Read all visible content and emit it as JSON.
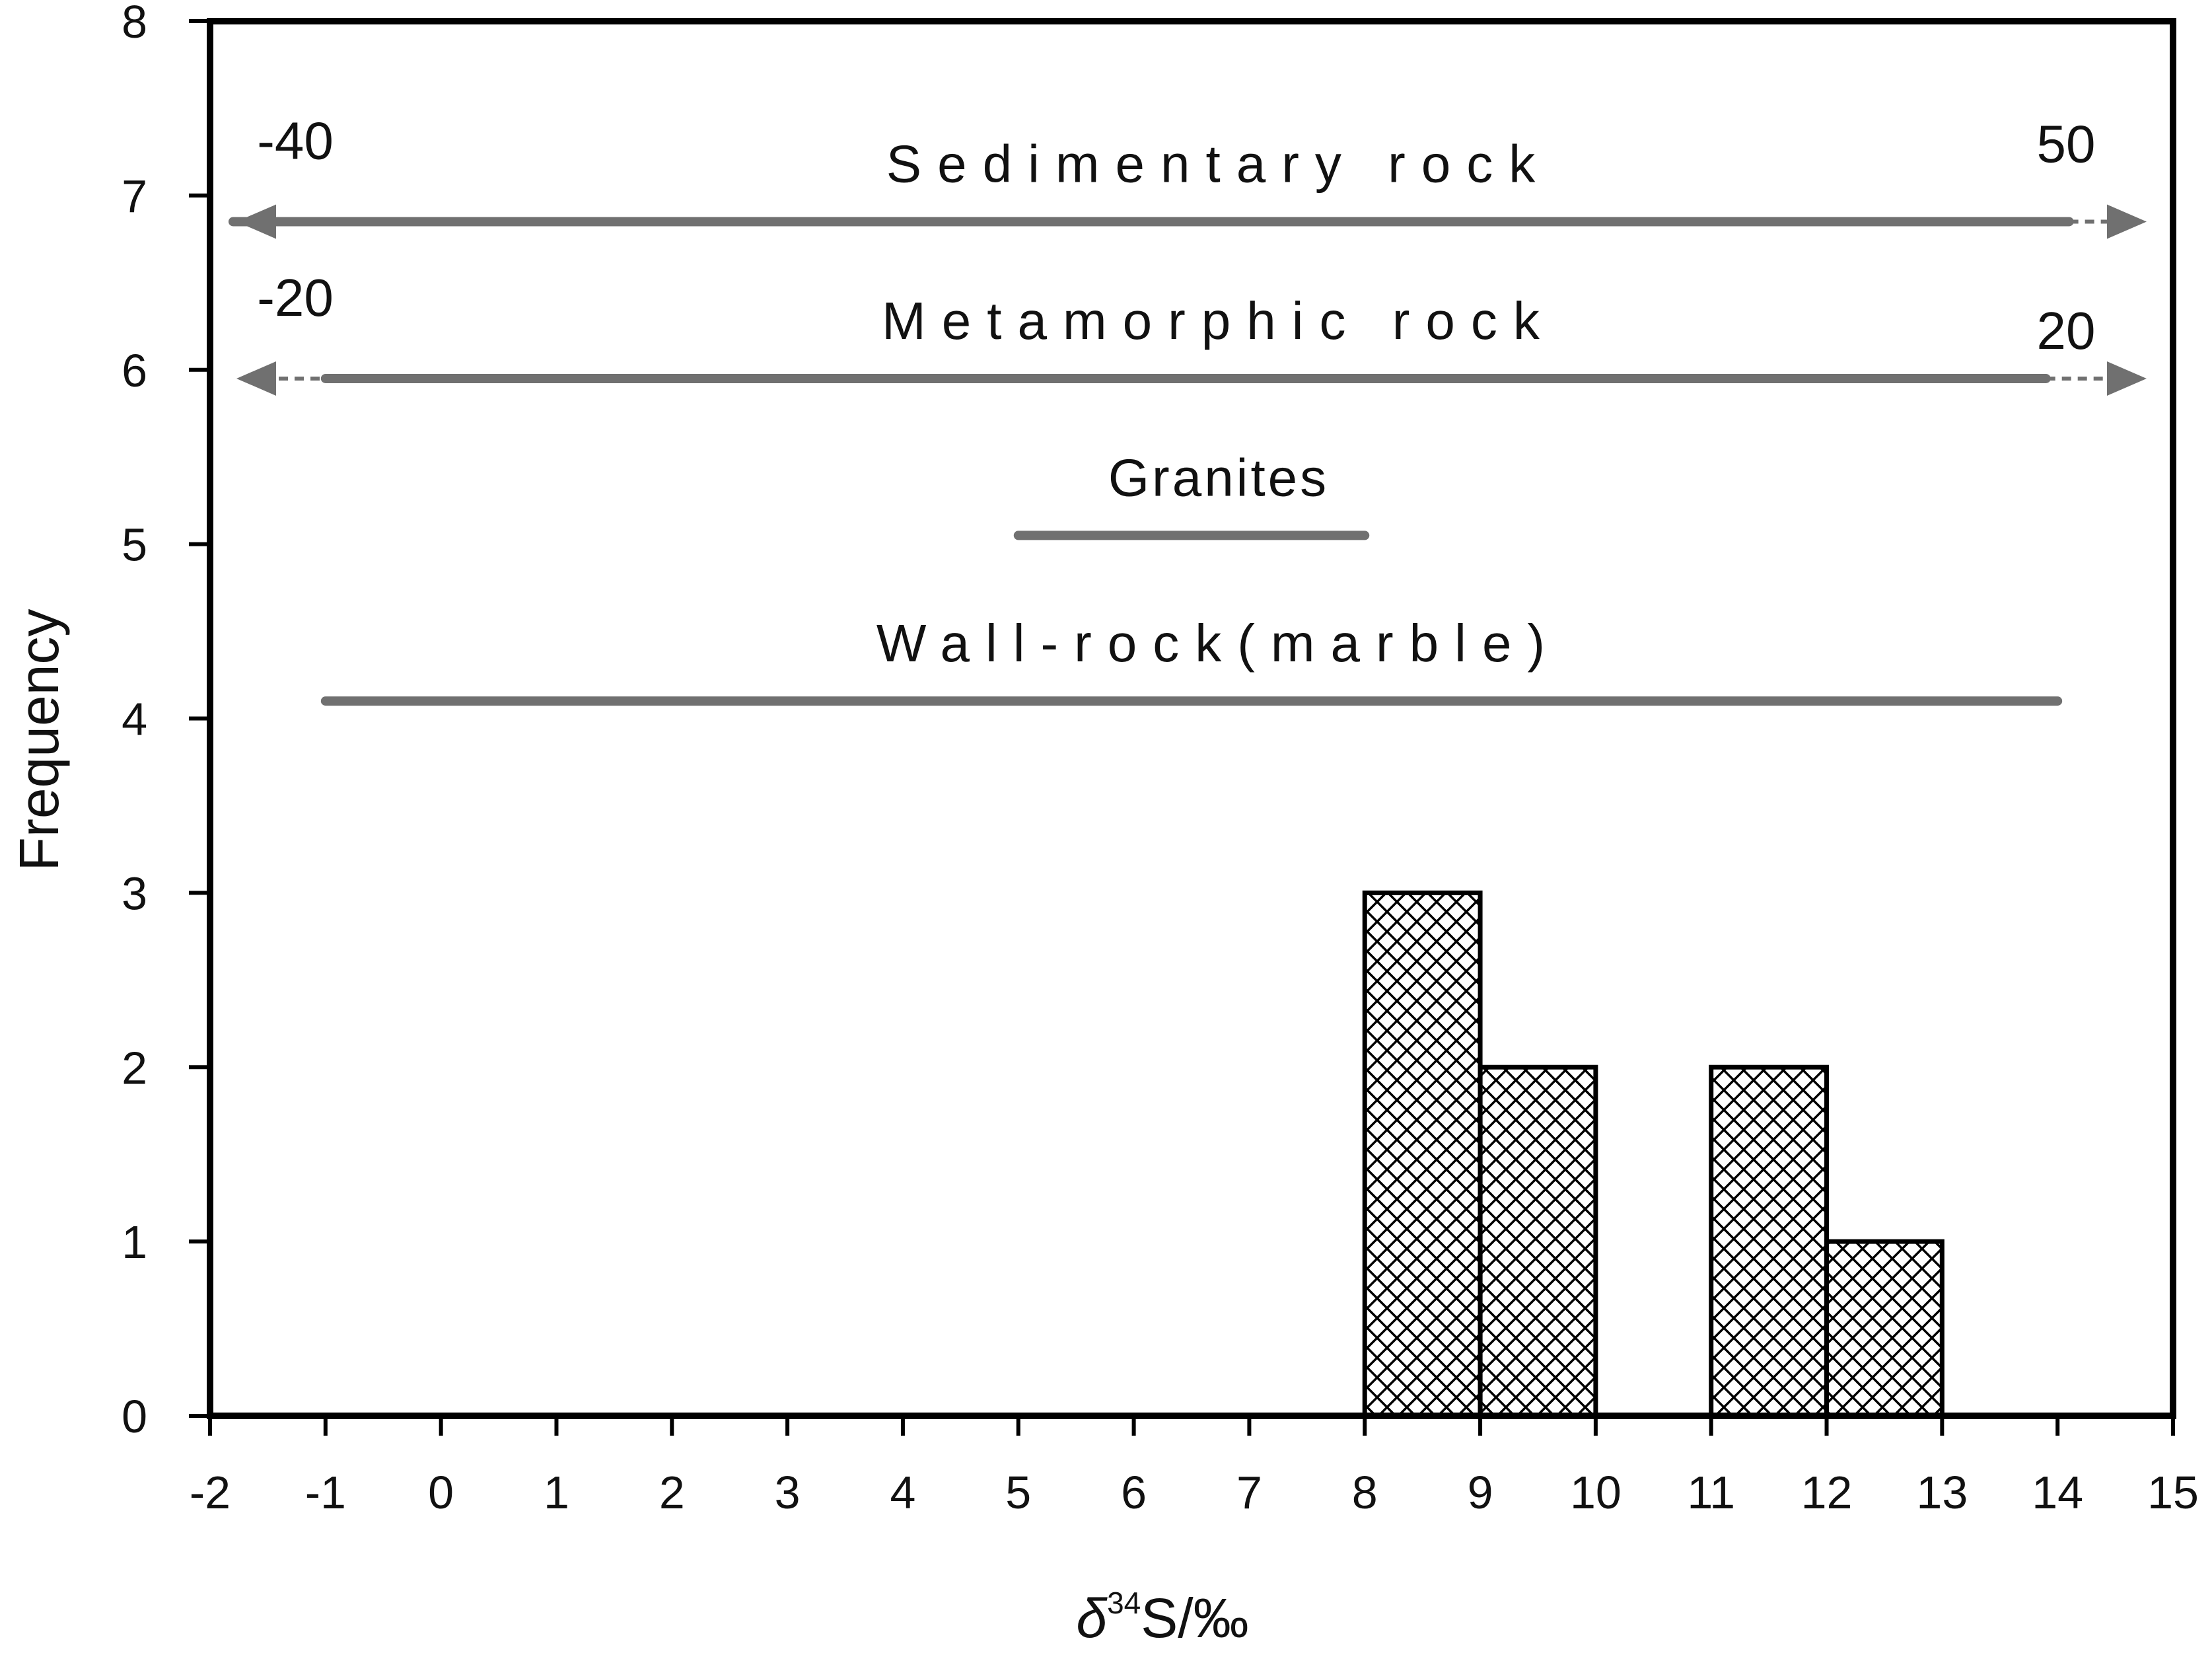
{
  "chart_data": {
    "type": "bar",
    "title": "",
    "xlabel": "δ34S/‰",
    "xlabel_parts": {
      "symbol": "δ",
      "superscript": "34",
      "suffix": "S/‰"
    },
    "ylabel": "Frequency",
    "xlim": [
      -2,
      15
    ],
    "ylim": [
      0,
      8
    ],
    "xticks": [
      "-2",
      "-1",
      "0",
      "1",
      "2",
      "3",
      "4",
      "5",
      "6",
      "7",
      "8",
      "9",
      "10",
      "11",
      "12",
      "13",
      "14",
      "15"
    ],
    "yticks": [
      "0",
      "1",
      "2",
      "3",
      "4",
      "5",
      "6",
      "7",
      "8"
    ],
    "bins": [
      {
        "start": 8,
        "end": 9,
        "count": 3
      },
      {
        "start": 9,
        "end": 10,
        "count": 2
      },
      {
        "start": 11,
        "end": 12,
        "count": 2
      },
      {
        "start": 12,
        "end": 13,
        "count": 1
      }
    ],
    "bar_pattern": "crosshatch",
    "grid": false,
    "reference_ranges": [
      {
        "label": "Sedimentary rock",
        "y": 6.85,
        "x_start": -1.8,
        "x_end": 14.1,
        "arrow_left": true,
        "arrow_right": true,
        "left_dashed": false,
        "right_dashed": true,
        "true_min": "-40",
        "true_max": "50"
      },
      {
        "label": "Metamorphic rock",
        "y": 5.95,
        "x_start": -1,
        "x_end": 13.9,
        "arrow_left": true,
        "arrow_right": true,
        "left_dashed": true,
        "right_dashed": true,
        "true_min": "-20",
        "true_max": "20"
      },
      {
        "label": "Granites",
        "y": 5.05,
        "x_start": 5,
        "x_end": 8,
        "arrow_left": false,
        "arrow_right": false,
        "left_dashed": false,
        "right_dashed": false,
        "true_min": "",
        "true_max": ""
      },
      {
        "label": "Wall-rock(marble)",
        "y": 4.1,
        "x_start": -1,
        "x_end": 14,
        "arrow_left": false,
        "arrow_right": false,
        "left_dashed": false,
        "right_dashed": false,
        "true_min": "",
        "true_max": ""
      }
    ],
    "colors": {
      "bar_edge": "#000000",
      "range_line": "#707070",
      "axis": "#000000"
    }
  }
}
